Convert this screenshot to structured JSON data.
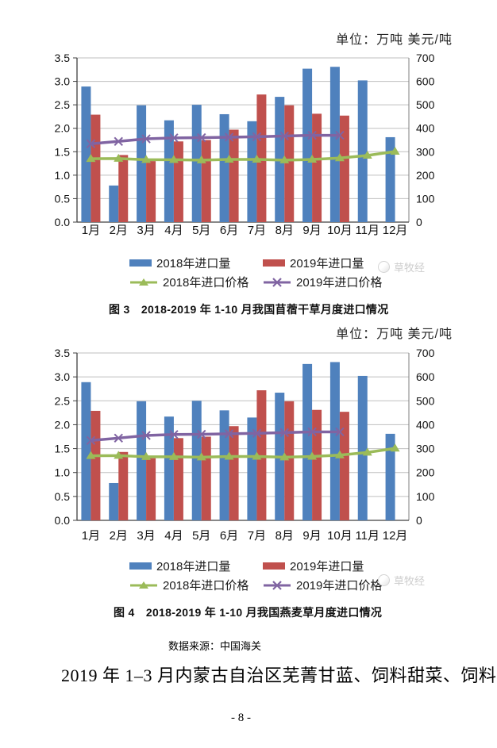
{
  "page": {
    "unit_label": "单位：万吨 美元/吨",
    "watermark": "草牧经",
    "source_note": "数据来源：中国海关",
    "heading": "2019 年 1–3 月内蒙古自治区芜菁甘蓝、饲料甜菜、饲料",
    "page_number": "- 8 -"
  },
  "figures": [
    {
      "caption": "图 3　2018-2019 年 1-10 月我国苜蓿干草月度进口情况"
    },
    {
      "caption": "图 4　2018-2019 年 1-10 月我国燕麦草月度进口情况"
    }
  ],
  "legend": {
    "items": [
      {
        "label": "2018年进口量",
        "type": "bar",
        "color": "#4F81BD"
      },
      {
        "label": "2019年进口量",
        "type": "bar",
        "color": "#C0504D"
      },
      {
        "label": "2018年进口价格",
        "type": "line-triangle",
        "color": "#9BBB59"
      },
      {
        "label": "2019年进口价格",
        "type": "line-x",
        "color": "#8064A2"
      }
    ]
  },
  "colors": {
    "bar_2018": "#4F81BD",
    "bar_2019": "#C0504D",
    "line_2018_price": "#9BBB59",
    "line_2019_price": "#8064A2",
    "gridline": "#bfbfbf",
    "axis": "#404040"
  },
  "chart_data": [
    {
      "type": "bar",
      "subtype": "combo-bar-line-dual-axis",
      "title": "图 3 2018-2019 年 1-10 月我国苜蓿干草月度进口情况",
      "unit": "单位：万吨 美元/吨",
      "categories": [
        "1月",
        "2月",
        "3月",
        "4月",
        "5月",
        "6月",
        "7月",
        "8月",
        "9月",
        "10月",
        "11月",
        "12月"
      ],
      "left_axis": {
        "min": 0,
        "max": 3.5,
        "ticks": [
          "0.0",
          "0.5",
          "1.0",
          "1.5",
          "2.0",
          "2.5",
          "3.0",
          "3.5"
        ]
      },
      "right_axis": {
        "min": 0,
        "max": 700,
        "ticks": [
          "0",
          "100",
          "200",
          "300",
          "400",
          "500",
          "600",
          "700"
        ]
      },
      "grid": true,
      "legend_position": "bottom",
      "series": [
        {
          "name": "2018年进口量",
          "kind": "bar",
          "axis": "left",
          "color": "#4F81BD",
          "values": [
            2.89,
            0.78,
            2.49,
            2.17,
            2.5,
            2.3,
            2.15,
            2.67,
            3.27,
            3.31,
            3.02,
            1.81
          ]
        },
        {
          "name": "2019年进口量",
          "kind": "bar",
          "axis": "left",
          "color": "#C0504D",
          "values": [
            2.29,
            1.43,
            1.3,
            1.72,
            1.75,
            1.97,
            2.72,
            2.49,
            2.31,
            2.27,
            null,
            null
          ]
        },
        {
          "name": "2018年进口价格",
          "kind": "line",
          "marker": "triangle",
          "axis": "right",
          "color": "#9BBB59",
          "values": [
            270,
            271,
            266,
            266,
            264,
            267,
            267,
            264,
            267,
            273,
            284,
            301
          ]
        },
        {
          "name": "2019年进口价格",
          "kind": "line",
          "marker": "x",
          "axis": "right",
          "color": "#8064A2",
          "values": [
            334,
            344,
            355,
            359,
            360,
            362,
            364,
            367,
            370,
            370,
            null,
            null
          ]
        }
      ]
    },
    {
      "type": "bar",
      "subtype": "combo-bar-line-dual-axis",
      "title": "图 4 2018-2019 年 1-10 月我国燕麦草月度进口情况",
      "unit": "单位：万吨 美元/吨",
      "categories": [
        "1月",
        "2月",
        "3月",
        "4月",
        "5月",
        "6月",
        "7月",
        "8月",
        "9月",
        "10月",
        "11月",
        "12月"
      ],
      "left_axis": {
        "min": 0,
        "max": 3.5,
        "ticks": [
          "0.0",
          "0.5",
          "1.0",
          "1.5",
          "2.0",
          "2.5",
          "3.0",
          "3.5"
        ]
      },
      "right_axis": {
        "min": 0,
        "max": 700,
        "ticks": [
          "0",
          "100",
          "200",
          "300",
          "400",
          "500",
          "600",
          "700"
        ]
      },
      "grid": true,
      "legend_position": "bottom",
      "series": [
        {
          "name": "2018年进口量",
          "kind": "bar",
          "axis": "left",
          "color": "#4F81BD",
          "values": [
            2.89,
            0.78,
            2.49,
            2.17,
            2.5,
            2.3,
            2.15,
            2.67,
            3.27,
            3.31,
            3.02,
            1.81
          ]
        },
        {
          "name": "2019年进口量",
          "kind": "bar",
          "axis": "left",
          "color": "#C0504D",
          "values": [
            2.29,
            1.43,
            1.3,
            1.72,
            1.75,
            1.97,
            2.72,
            2.49,
            2.31,
            2.27,
            null,
            null
          ]
        },
        {
          "name": "2018年进口价格",
          "kind": "line",
          "marker": "triangle",
          "axis": "right",
          "color": "#9BBB59",
          "values": [
            270,
            271,
            266,
            266,
            264,
            267,
            267,
            264,
            267,
            273,
            284,
            301
          ]
        },
        {
          "name": "2019年进口价格",
          "kind": "line",
          "marker": "x",
          "axis": "right",
          "color": "#8064A2",
          "values": [
            334,
            344,
            355,
            359,
            360,
            362,
            364,
            367,
            370,
            370,
            null,
            null
          ]
        }
      ]
    }
  ]
}
